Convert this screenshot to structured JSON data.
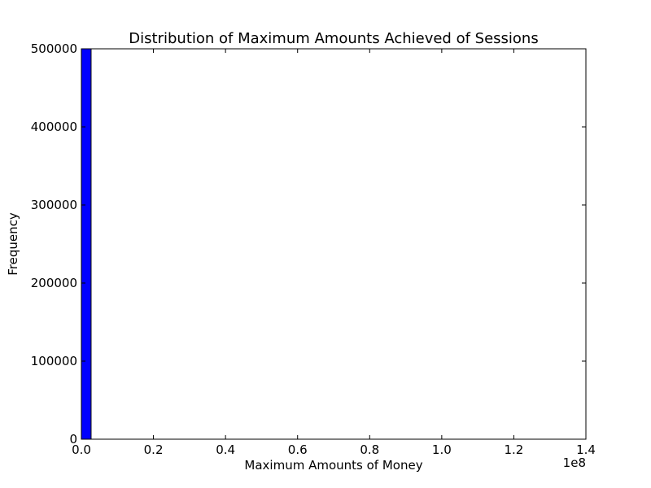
{
  "chart_data": {
    "type": "bar",
    "title": "Distribution of Maximum Amounts Achieved of Sessions",
    "xlabel": "Maximum Amounts of Money",
    "ylabel": "Frequency",
    "x_offset_label": "1e8",
    "xlim": [
      0,
      1.4
    ],
    "ylim": [
      0,
      500000
    ],
    "xticks": [
      0.0,
      0.2,
      0.4,
      0.6,
      0.8,
      1.0,
      1.2,
      1.4
    ],
    "xtick_labels": [
      "0.0",
      "0.2",
      "0.4",
      "0.6",
      "0.8",
      "1.0",
      "1.2",
      "1.4"
    ],
    "yticks": [
      0,
      100000,
      200000,
      300000,
      400000,
      500000
    ],
    "ytick_labels": [
      "0",
      "100000",
      "200000",
      "300000",
      "400000",
      "500000"
    ],
    "bins": [
      {
        "x0": 0.0,
        "x1": 0.027,
        "value": 500000
      }
    ],
    "bar_color": "#0000ff",
    "grid": false
  }
}
